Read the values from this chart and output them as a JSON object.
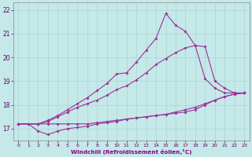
{
  "xlabel": "Windchill (Refroidissement éolien,°C)",
  "xlim": [
    -0.5,
    23.5
  ],
  "ylim": [
    16.5,
    22.3
  ],
  "xtick_values": [
    0,
    1,
    2,
    3,
    4,
    5,
    6,
    7,
    8,
    9,
    10,
    11,
    12,
    13,
    14,
    15,
    16,
    17,
    18,
    19,
    20,
    21,
    22,
    23
  ],
  "xtick_labels": [
    "0",
    "1",
    "2",
    "3",
    "4",
    "5",
    "6",
    "7",
    "8",
    "9",
    "10",
    "11",
    "12",
    "13",
    "14",
    "15",
    "16",
    "17",
    "18",
    "19",
    "20",
    "21",
    "22",
    "23"
  ],
  "ytick_values": [
    17,
    18,
    19,
    20,
    21,
    22
  ],
  "ytick_labels": [
    "17",
    "18",
    "19",
    "20",
    "21",
    "22"
  ],
  "background_color": "#c5e8e8",
  "grid_color": "#aad4d4",
  "line_color": "#993399",
  "lines": [
    {
      "x": [
        0,
        1,
        2,
        3,
        4,
        5,
        6,
        7,
        8,
        9,
        10,
        11,
        12,
        13,
        14,
        15,
        16,
        17,
        18,
        19,
        20,
        21,
        22,
        23
      ],
      "y": [
        17.2,
        17.2,
        17.2,
        17.2,
        17.2,
        17.2,
        17.2,
        17.2,
        17.25,
        17.3,
        17.35,
        17.4,
        17.45,
        17.5,
        17.55,
        17.6,
        17.7,
        17.8,
        17.9,
        18.05,
        18.2,
        18.35,
        18.45,
        18.5
      ]
    },
    {
      "x": [
        0,
        1,
        2,
        3,
        4,
        5,
        6,
        7,
        8,
        9,
        10,
        11,
        12,
        13,
        14,
        15,
        16,
        17,
        18,
        19,
        20,
        21,
        22,
        23
      ],
      "y": [
        17.2,
        17.2,
        16.9,
        16.75,
        16.9,
        17.0,
        17.05,
        17.1,
        17.2,
        17.25,
        17.3,
        17.4,
        17.45,
        17.5,
        17.55,
        17.6,
        17.65,
        17.7,
        17.8,
        18.0,
        18.2,
        18.35,
        18.45,
        18.5
      ]
    },
    {
      "x": [
        0,
        2,
        3,
        4,
        5,
        6,
        7,
        8,
        9,
        10,
        11,
        12,
        13,
        14,
        15,
        16,
        17,
        18,
        19,
        20,
        21,
        22,
        23
      ],
      "y": [
        17.2,
        17.2,
        17.3,
        17.5,
        17.7,
        17.9,
        18.05,
        18.2,
        18.4,
        18.65,
        18.8,
        19.05,
        19.35,
        19.7,
        19.95,
        20.2,
        20.4,
        20.5,
        20.45,
        19.0,
        18.7,
        18.5,
        18.5
      ]
    },
    {
      "x": [
        0,
        2,
        3,
        4,
        5,
        6,
        7,
        8,
        9,
        10,
        11,
        12,
        13,
        14,
        15,
        16,
        17,
        18,
        19,
        20,
        21,
        22,
        23
      ],
      "y": [
        17.2,
        17.2,
        17.35,
        17.55,
        17.8,
        18.05,
        18.3,
        18.6,
        18.9,
        19.3,
        19.35,
        19.8,
        20.3,
        20.8,
        21.85,
        21.35,
        21.1,
        20.5,
        19.1,
        18.7,
        18.5,
        18.5,
        18.5
      ]
    }
  ],
  "marker": "D",
  "markersize": 2.0,
  "linewidth": 0.8
}
